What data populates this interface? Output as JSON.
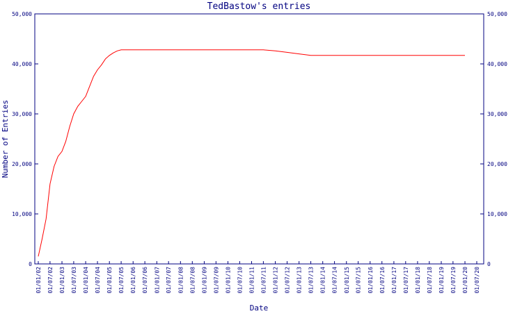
{
  "chart_data": {
    "type": "line",
    "title": "TedBastow's entries",
    "xlabel": "Date",
    "ylabel": "Number of Entries",
    "ylim": [
      0,
      50000
    ],
    "y_ticks": [
      0,
      10000,
      20000,
      30000,
      40000,
      50000
    ],
    "y_tick_labels": [
      "0",
      "10,000",
      "20,000",
      "30,000",
      "40,000",
      "50,000"
    ],
    "x_tick_labels": [
      "01/01/02",
      "01/07/02",
      "01/01/03",
      "01/07/03",
      "01/01/04",
      "01/07/04",
      "01/01/05",
      "01/07/05",
      "01/01/06",
      "01/07/06",
      "01/01/07",
      "01/07/07",
      "01/01/08",
      "01/07/08",
      "01/01/09",
      "01/07/09",
      "01/01/10",
      "01/07/10",
      "01/01/11",
      "01/07/11",
      "01/01/12",
      "01/07/12",
      "01/01/13",
      "01/07/13",
      "01/01/14",
      "01/07/14",
      "01/01/15",
      "01/07/15",
      "01/01/16",
      "01/07/16",
      "01/01/17",
      "01/07/17",
      "01/01/18",
      "01/07/18",
      "01/01/19",
      "01/07/19",
      "01/01/20",
      "01/07/20"
    ],
    "grid": false,
    "line_color": "#ff0000",
    "axis_color": "#000080",
    "series": [
      {
        "x": [
          "01/01/02",
          "01/03/02",
          "01/05/02",
          "01/07/02",
          "01/09/02",
          "01/11/02",
          "01/01/03",
          "01/03/03",
          "01/05/03",
          "01/07/03",
          "01/09/03",
          "01/11/03",
          "01/01/04",
          "01/03/04",
          "01/05/04",
          "01/07/04",
          "01/09/04",
          "01/11/04",
          "01/01/05",
          "01/03/05",
          "01/05/05",
          "01/07/05",
          "01/09/05",
          "01/11/05",
          "01/01/06",
          "01/07/06",
          "01/01/07",
          "01/07/07",
          "01/01/08",
          "01/07/08",
          "01/01/09",
          "01/07/09",
          "01/01/10",
          "01/07/10",
          "01/01/11",
          "01/07/11",
          "01/01/12",
          "01/07/12",
          "01/01/13",
          "01/07/13",
          "01/01/14",
          "01/07/14",
          "01/01/15",
          "01/07/15",
          "01/01/16",
          "01/07/16",
          "01/01/17",
          "01/07/17",
          "01/01/18",
          "01/07/18",
          "01/01/19",
          "01/07/19",
          "01/01/20"
        ],
        "values": [
          1500,
          5000,
          9000,
          16000,
          19500,
          21500,
          22500,
          24500,
          27500,
          30000,
          31500,
          32500,
          33500,
          35500,
          37500,
          38800,
          39800,
          41000,
          41700,
          42200,
          42600,
          42800,
          42800,
          42800,
          42800,
          42800,
          42800,
          42800,
          42800,
          42800,
          42800,
          42800,
          42800,
          42800,
          42800,
          42800,
          42600,
          42300,
          42000,
          41700,
          41700,
          41700,
          41700,
          41700,
          41700,
          41700,
          41700,
          41700,
          41700,
          41700,
          41700,
          41700,
          41700
        ]
      }
    ]
  }
}
